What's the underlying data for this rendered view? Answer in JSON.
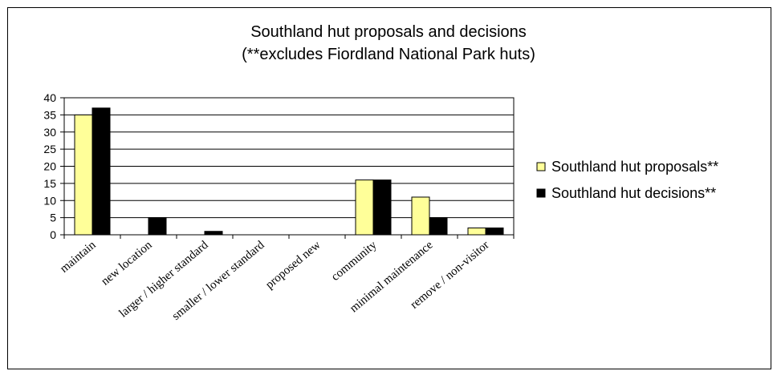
{
  "chart_data": {
    "type": "bar",
    "title": "Southland hut proposals and decisions",
    "subtitle": "(**excludes Fiordland National Park huts)",
    "categories": [
      "maintain",
      "new location",
      "larger / higher standard",
      "smaller / lower standard",
      "proposed new",
      "community",
      "minimal maintenance",
      "remove / non-visitor"
    ],
    "series": [
      {
        "name": "Southland hut proposals**",
        "color": "#ffff99",
        "values": [
          35,
          0,
          0,
          0,
          0,
          16,
          11,
          2
        ]
      },
      {
        "name": "Southland hut decisions**",
        "color": "#000000",
        "values": [
          37,
          5,
          1,
          0,
          0,
          16,
          5,
          2
        ]
      }
    ],
    "ylim": [
      0,
      40
    ],
    "yticks": [
      "0",
      "5",
      "10",
      "15",
      "20",
      "25",
      "30",
      "35",
      "40"
    ],
    "grid": true,
    "legend_position": "right"
  }
}
